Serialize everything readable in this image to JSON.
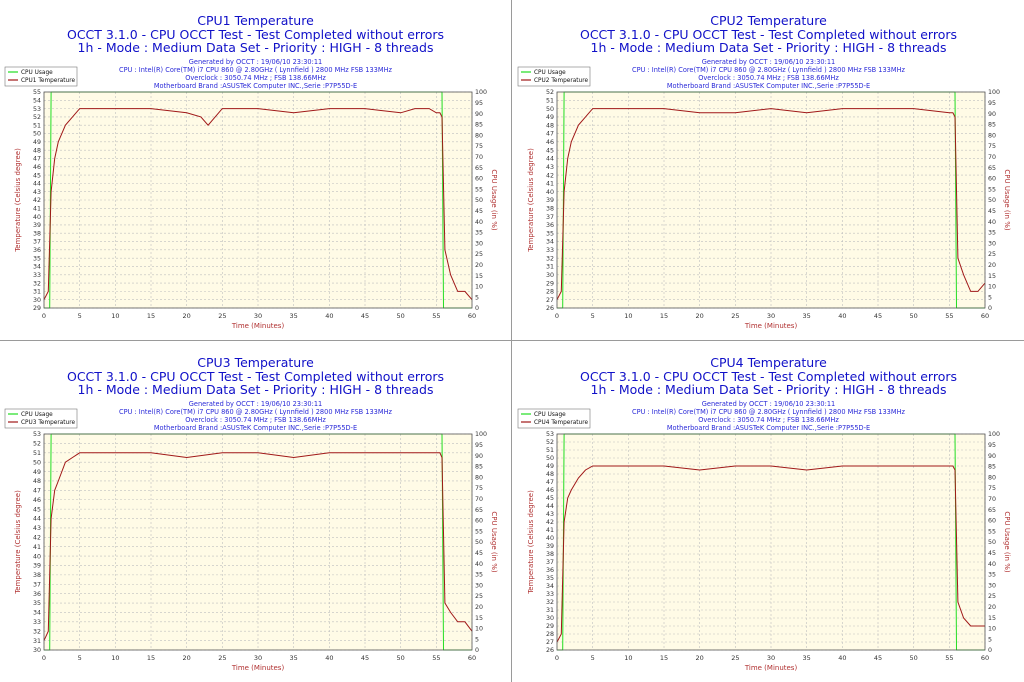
{
  "info_lines": [
    "Generated by OCCT : 19/06/10 23:30:11",
    "CPU : Intel(R) Core(TM) i7 CPU 860 @ 2.80GHz ( Lynnfield ) 2800 MHz FSB 133MHz",
    "Overclock : 3050.74 MHz ; FSB 138.66MHz",
    "Motherboard Brand :ASUSTeK Computer INC.,Serie :P7P55D-E"
  ],
  "colors": {
    "usage": "#22dd22",
    "temperature": "#a01818",
    "title": "#1010c8",
    "axis_label": "#b03030",
    "plot_bg": "#fffbe6",
    "grid": "#bfbfbf"
  },
  "chart_data": [
    {
      "type": "line",
      "title": "CPU1 Temperature",
      "subtitle_lines": [
        "OCCT 3.1.0 - CPU OCCT Test - Test Completed without errors",
        "1h - Mode : Medium Data Set - Priority : HIGH - 8 threads"
      ],
      "xlabel": "Time (Minutes)",
      "ylabel": "Temperature (Celsius degree)",
      "y2label": "CPU Usage (in %)",
      "xlim": [
        0,
        60
      ],
      "ylim": [
        29,
        55
      ],
      "y2lim": [
        0,
        100
      ],
      "xticks": [
        "0",
        "5",
        "10",
        "15",
        "20",
        "25",
        "30",
        "35",
        "40",
        "45",
        "50",
        "55",
        "60"
      ],
      "yticks": [
        "29",
        "30",
        "31",
        "32",
        "33",
        "34",
        "35",
        "36",
        "37",
        "38",
        "39",
        "40",
        "41",
        "42",
        "43",
        "44",
        "45",
        "46",
        "47",
        "48",
        "49",
        "50",
        "51",
        "52",
        "53",
        "54",
        "55"
      ],
      "y2ticks": [
        "0",
        "5",
        "10",
        "15",
        "20",
        "25",
        "30",
        "35",
        "40",
        "45",
        "50",
        "55",
        "60",
        "65",
        "70",
        "75",
        "80",
        "85",
        "90",
        "95",
        "100"
      ],
      "grid": true,
      "legend": [
        "CPU Usage",
        "CPU1 Temperature"
      ],
      "legend_position": "top-left",
      "series": [
        {
          "name": "CPU Usage",
          "axis": "right",
          "x": [
            0,
            0.8,
            1.0,
            55.8,
            56.0,
            60
          ],
          "y": [
            0,
            0,
            100,
            100,
            0,
            0
          ]
        },
        {
          "name": "CPU1 Temperature",
          "axis": "left",
          "x": [
            0,
            0.6,
            1,
            1.5,
            2,
            3,
            4,
            5,
            7,
            10,
            15,
            20,
            22,
            23,
            25,
            30,
            35,
            40,
            45,
            50,
            52,
            53,
            54,
            55,
            55.5,
            55.8,
            56.2,
            57,
            58,
            59,
            60
          ],
          "y": [
            30,
            31,
            43,
            47,
            49,
            51,
            52,
            53,
            53,
            53,
            53,
            52.5,
            52,
            51,
            53,
            53,
            52.5,
            53,
            53,
            52.5,
            53,
            53,
            53,
            52.5,
            52.5,
            52,
            36,
            33,
            31,
            31,
            30
          ]
        }
      ]
    },
    {
      "type": "line",
      "title": "CPU2 Temperature",
      "subtitle_lines": [
        "OCCT 3.1.0 - CPU OCCT Test - Test Completed without errors",
        "1h - Mode : Medium Data Set - Priority : HIGH - 8 threads"
      ],
      "xlabel": "Time (Minutes)",
      "ylabel": "Temperature (Celsius degree)",
      "y2label": "CPU Usage (in %)",
      "xlim": [
        0,
        60
      ],
      "ylim": [
        26,
        52
      ],
      "y2lim": [
        0,
        100
      ],
      "xticks": [
        "0",
        "5",
        "10",
        "15",
        "20",
        "25",
        "30",
        "35",
        "40",
        "45",
        "50",
        "55",
        "60"
      ],
      "yticks": [
        "26",
        "27",
        "28",
        "29",
        "30",
        "31",
        "32",
        "33",
        "34",
        "35",
        "36",
        "37",
        "38",
        "39",
        "40",
        "41",
        "42",
        "43",
        "44",
        "45",
        "46",
        "47",
        "48",
        "49",
        "50",
        "51",
        "52"
      ],
      "y2ticks": [
        "0",
        "5",
        "10",
        "15",
        "20",
        "25",
        "30",
        "35",
        "40",
        "45",
        "50",
        "55",
        "60",
        "65",
        "70",
        "75",
        "80",
        "85",
        "90",
        "95",
        "100"
      ],
      "grid": true,
      "legend": [
        "CPU Usage",
        "CPU2 Temperature"
      ],
      "legend_position": "top-left",
      "series": [
        {
          "name": "CPU Usage",
          "axis": "right",
          "x": [
            0,
            0.8,
            1.0,
            55.8,
            56.0,
            60
          ],
          "y": [
            0,
            0,
            100,
            100,
            0,
            0
          ]
        },
        {
          "name": "CPU2 Temperature",
          "axis": "left",
          "x": [
            0,
            0.6,
            1,
            1.5,
            2,
            3,
            4,
            5,
            7,
            10,
            15,
            20,
            25,
            30,
            35,
            40,
            45,
            50,
            55,
            55.5,
            55.8,
            56.2,
            57,
            58,
            59,
            60
          ],
          "y": [
            27,
            28,
            40,
            44,
            46,
            48,
            49,
            50,
            50,
            50,
            50,
            49.5,
            49.5,
            50,
            49.5,
            50,
            50,
            50,
            49.5,
            49.5,
            49,
            32,
            30,
            28,
            28,
            29
          ]
        }
      ]
    },
    {
      "type": "line",
      "title": "CPU3 Temperature",
      "subtitle_lines": [
        "OCCT 3.1.0 - CPU OCCT Test - Test Completed without errors",
        "1h - Mode : Medium Data Set - Priority : HIGH - 8 threads"
      ],
      "xlabel": "Time (Minutes)",
      "ylabel": "Temperature (Celsius degree)",
      "y2label": "CPU Usage (in %)",
      "xlim": [
        0,
        60
      ],
      "ylim": [
        30,
        53
      ],
      "y2lim": [
        0,
        100
      ],
      "xticks": [
        "0",
        "5",
        "10",
        "15",
        "20",
        "25",
        "30",
        "35",
        "40",
        "45",
        "50",
        "55",
        "60"
      ],
      "yticks": [
        "30",
        "31",
        "32",
        "33",
        "34",
        "35",
        "36",
        "37",
        "38",
        "39",
        "40",
        "41",
        "42",
        "43",
        "44",
        "45",
        "46",
        "47",
        "48",
        "49",
        "50",
        "51",
        "52",
        "53"
      ],
      "y2ticks": [
        "0",
        "5",
        "10",
        "15",
        "20",
        "25",
        "30",
        "35",
        "40",
        "45",
        "50",
        "55",
        "60",
        "65",
        "70",
        "75",
        "80",
        "85",
        "90",
        "95",
        "100"
      ],
      "grid": true,
      "legend": [
        "CPU Usage",
        "CPU3 Temperature"
      ],
      "legend_position": "top-left",
      "series": [
        {
          "name": "CPU Usage",
          "axis": "right",
          "x": [
            0,
            0.8,
            1.0,
            55.8,
            56.0,
            60
          ],
          "y": [
            0,
            0,
            100,
            100,
            0,
            0
          ]
        },
        {
          "name": "CPU3 Temperature",
          "axis": "left",
          "x": [
            0,
            0.6,
            1,
            1.5,
            2,
            3,
            4,
            5,
            7,
            10,
            15,
            20,
            25,
            30,
            35,
            40,
            45,
            50,
            55,
            55.5,
            55.8,
            56.2,
            57,
            58,
            59,
            60
          ],
          "y": [
            31,
            32,
            44,
            47,
            48,
            50,
            50.5,
            51,
            51,
            51,
            51,
            50.5,
            51,
            51,
            50.5,
            51,
            51,
            51,
            51,
            51,
            50.5,
            35,
            34,
            33,
            33,
            32
          ]
        }
      ]
    },
    {
      "type": "line",
      "title": "CPU4 Temperature",
      "subtitle_lines": [
        "OCCT 3.1.0 - CPU OCCT Test - Test Completed without errors",
        "1h - Mode : Medium Data Set - Priority : HIGH - 8 threads"
      ],
      "xlabel": "Time (Minutes)",
      "ylabel": "Temperature (Celsius degree)",
      "y2label": "CPU Usage (in %)",
      "xlim": [
        0,
        60
      ],
      "ylim": [
        26,
        53
      ],
      "y2lim": [
        0,
        100
      ],
      "xticks": [
        "0",
        "5",
        "10",
        "15",
        "20",
        "25",
        "30",
        "35",
        "40",
        "45",
        "50",
        "55",
        "60"
      ],
      "yticks": [
        "26",
        "27",
        "28",
        "29",
        "30",
        "31",
        "32",
        "33",
        "34",
        "35",
        "36",
        "37",
        "38",
        "39",
        "40",
        "41",
        "42",
        "43",
        "44",
        "45",
        "46",
        "47",
        "48",
        "49",
        "50",
        "51",
        "52",
        "53"
      ],
      "y2ticks": [
        "0",
        "5",
        "10",
        "15",
        "20",
        "25",
        "30",
        "35",
        "40",
        "45",
        "50",
        "55",
        "60",
        "65",
        "70",
        "75",
        "80",
        "85",
        "90",
        "95",
        "100"
      ],
      "grid": true,
      "legend": [
        "CPU Usage",
        "CPU4 Temperature"
      ],
      "legend_position": "top-left",
      "series": [
        {
          "name": "CPU Usage",
          "axis": "right",
          "x": [
            0,
            0.8,
            1.0,
            55.8,
            56.0,
            60
          ],
          "y": [
            0,
            0,
            100,
            100,
            0,
            0
          ]
        },
        {
          "name": "CPU4 Temperature",
          "axis": "left",
          "x": [
            0,
            0.6,
            1,
            1.5,
            2,
            3,
            4,
            5,
            7,
            10,
            15,
            20,
            25,
            30,
            35,
            40,
            45,
            50,
            55,
            55.5,
            55.8,
            56.2,
            57,
            58,
            59,
            60
          ],
          "y": [
            27,
            28,
            42,
            45,
            46,
            47.5,
            48.5,
            49,
            49,
            49,
            49,
            48.5,
            49,
            49,
            48.5,
            49,
            49,
            49,
            49,
            49,
            48.5,
            32,
            30,
            29,
            29,
            29
          ]
        }
      ]
    }
  ]
}
